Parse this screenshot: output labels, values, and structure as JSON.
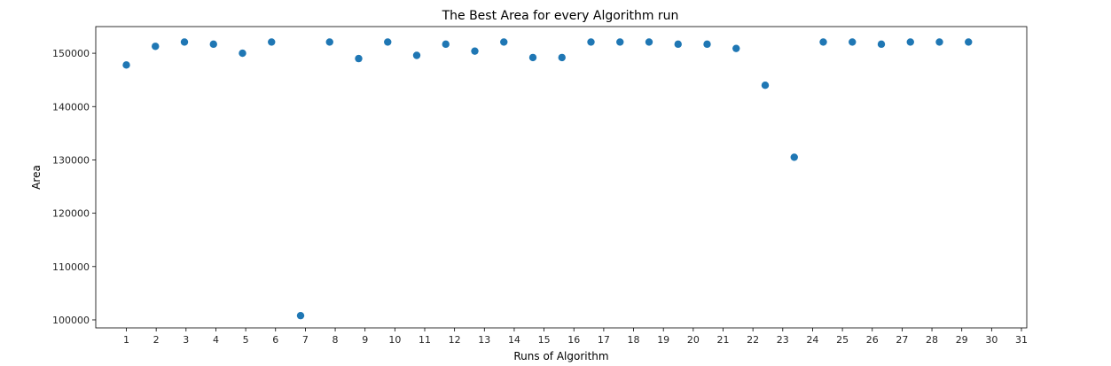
{
  "chart_data": {
    "type": "scatter",
    "title": "The Best Area for every Algorithm run",
    "xlabel": "Runs of Algorithm",
    "ylabel": "Area",
    "x_tick_labels": [
      "1",
      "2",
      "3",
      "4",
      "5",
      "6",
      "7",
      "8",
      "9",
      "10",
      "11",
      "12",
      "13",
      "14",
      "15",
      "16",
      "17",
      "18",
      "19",
      "20",
      "21",
      "22",
      "23",
      "24",
      "25",
      "26",
      "27",
      "28",
      "29",
      "30",
      "31"
    ],
    "y_ticks": [
      100000,
      110000,
      120000,
      130000,
      140000,
      150000
    ],
    "ylim": [
      98500,
      155000
    ],
    "points": [
      {
        "x": 1,
        "y": 147800
      },
      {
        "x": 2,
        "y": 151300
      },
      {
        "x": 3,
        "y": 152100
      },
      {
        "x": 4,
        "y": 151700
      },
      {
        "x": 5,
        "y": 150000
      },
      {
        "x": 6,
        "y": 152100
      },
      {
        "x": 7,
        "y": 100800
      },
      {
        "x": 8,
        "y": 152100
      },
      {
        "x": 9,
        "y": 149000
      },
      {
        "x": 10,
        "y": 152100
      },
      {
        "x": 11,
        "y": 149600
      },
      {
        "x": 12,
        "y": 151700
      },
      {
        "x": 13,
        "y": 150400
      },
      {
        "x": 14,
        "y": 152100
      },
      {
        "x": 15,
        "y": 149200
      },
      {
        "x": 16,
        "y": 149200
      },
      {
        "x": 17,
        "y": 152100
      },
      {
        "x": 18,
        "y": 152100
      },
      {
        "x": 19,
        "y": 152100
      },
      {
        "x": 20,
        "y": 151700
      },
      {
        "x": 21,
        "y": 151700
      },
      {
        "x": 22,
        "y": 150900
      },
      {
        "x": 23,
        "y": 144000
      },
      {
        "x": 24,
        "y": 130500
      },
      {
        "x": 25,
        "y": 152100
      },
      {
        "x": 26,
        "y": 152100
      },
      {
        "x": 27,
        "y": 151700
      },
      {
        "x": 28,
        "y": 152100
      },
      {
        "x": 29,
        "y": 152100
      },
      {
        "x": 30,
        "y": 152100
      }
    ],
    "marker_color": "#1f77b4",
    "grid": false,
    "legend": "none"
  }
}
